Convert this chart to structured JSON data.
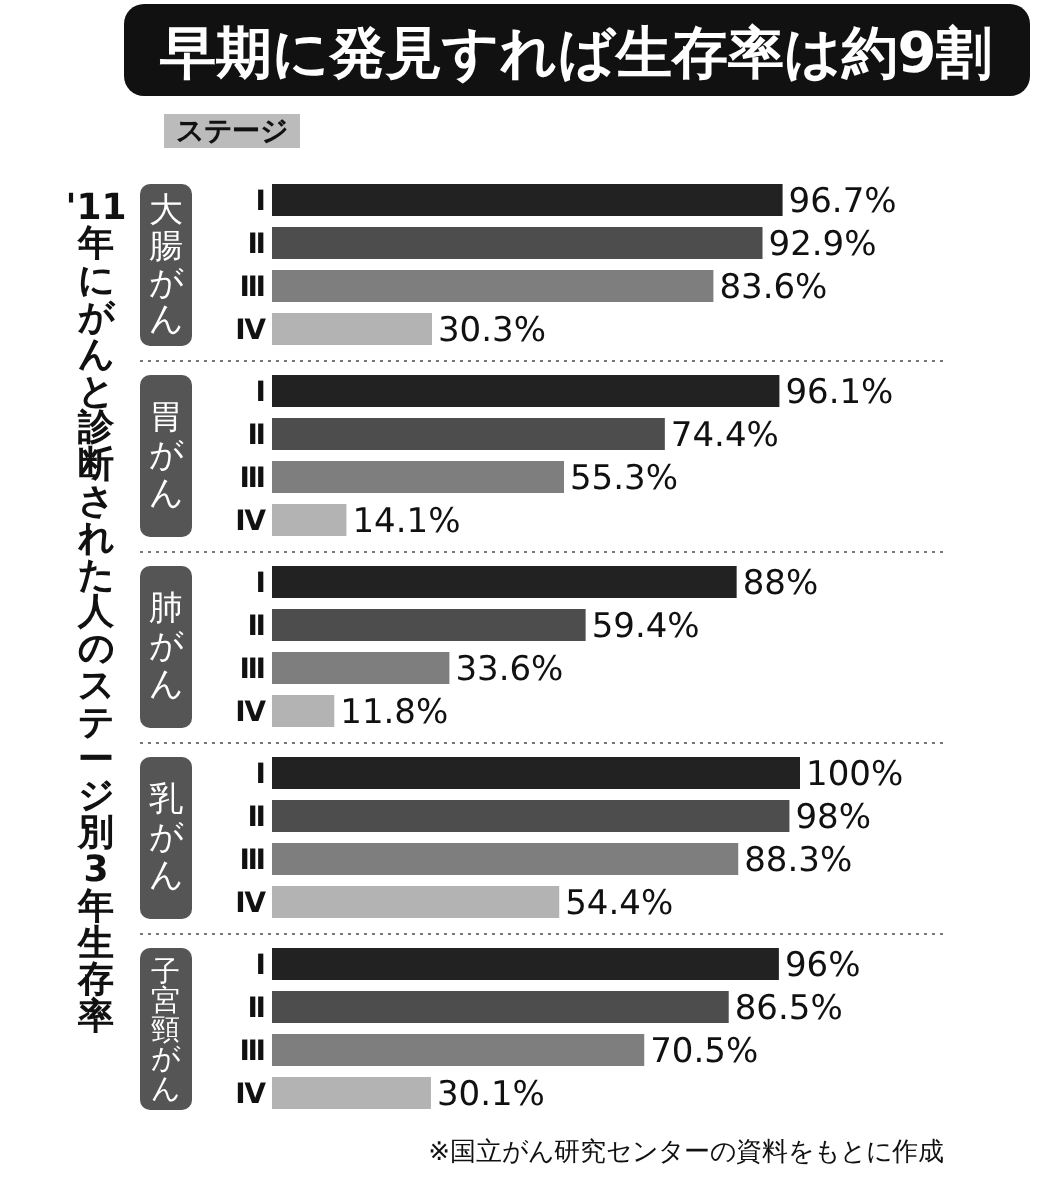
{
  "chart_data": {
    "type": "bar",
    "orientation": "horizontal",
    "title": "早期に発見すれば生存率は約9割",
    "ylabel": "'11年にがんと診断された人のステージ別3年生存率",
    "legend_title": "ステージ",
    "categories": [
      "大腸がん",
      "胃がん",
      "肺がん",
      "乳がん",
      "子宮頸がん"
    ],
    "xlim": [
      0,
      100
    ],
    "series": [
      {
        "name": "Ⅰ",
        "color": "#222222",
        "values": [
          96.7,
          96.1,
          88,
          100,
          96
        ],
        "value_labels": [
          "96.7%",
          "96.1%",
          "88%",
          "100%",
          "96%"
        ]
      },
      {
        "name": "Ⅱ",
        "color": "#4d4d4d",
        "values": [
          92.9,
          74.4,
          59.4,
          98,
          86.5
        ],
        "value_labels": [
          "92.9%",
          "74.4%",
          "59.4%",
          "98%",
          "86.5%"
        ]
      },
      {
        "name": "Ⅲ",
        "color": "#7e7e7e",
        "values": [
          83.6,
          55.3,
          33.6,
          88.3,
          70.5
        ],
        "value_labels": [
          "83.6%",
          "55.3%",
          "33.6%",
          "88.3%",
          "70.5%"
        ]
      },
      {
        "name": "Ⅳ",
        "color": "#b3b3b3",
        "values": [
          30.3,
          14.1,
          11.8,
          54.4,
          30.1
        ],
        "value_labels": [
          "30.3%",
          "14.1%",
          "11.8%",
          "54.4%",
          "30.1%"
        ]
      }
    ],
    "annotations": [
      "※国立がん研究センターの資料をもとに作成"
    ]
  }
}
